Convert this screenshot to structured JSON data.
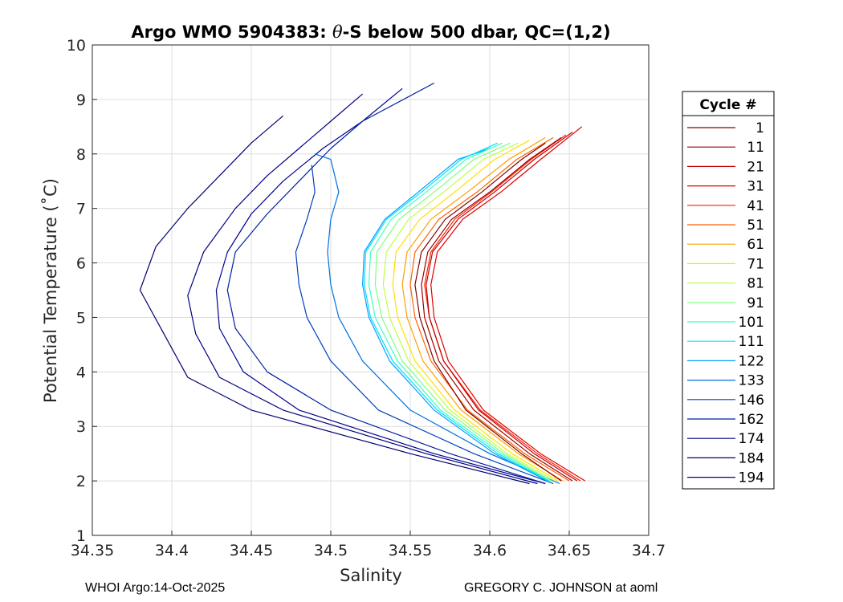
{
  "chart_data": {
    "type": "line",
    "title_prefix": "Argo WMO 5904383: ",
    "title_theta": "θ",
    "title_suffix": "-S below 500 dbar,  QC=(1,2)",
    "xlabel": "Salinity",
    "ylabel": "Potential Temperature (˚C)",
    "xlim": [
      34.35,
      34.7
    ],
    "ylim": [
      1,
      10
    ],
    "x_ticks": [
      "34.35",
      "34.4",
      "34.45",
      "34.5",
      "34.55",
      "34.6",
      "34.65",
      "34.7"
    ],
    "y_ticks": [
      "1",
      "2",
      "3",
      "4",
      "5",
      "6",
      "7",
      "8",
      "9",
      "10"
    ],
    "grid": true,
    "legend_position": "outside-right",
    "legend": {
      "title": "Cycle #",
      "entries": [
        {
          "label": "1",
          "color": "#800000"
        },
        {
          "label": "11",
          "color": "#9e0000"
        },
        {
          "label": "21",
          "color": "#c00000"
        },
        {
          "label": "31",
          "color": "#e00000"
        },
        {
          "label": "41",
          "color": "#ff2000"
        },
        {
          "label": "51",
          "color": "#ff6000"
        },
        {
          "label": "61",
          "color": "#ffa000"
        },
        {
          "label": "71",
          "color": "#ffe000"
        },
        {
          "label": "81",
          "color": "#c0ff40"
        },
        {
          "label": "91",
          "color": "#80ff80"
        },
        {
          "label": "101",
          "color": "#40ffc0"
        },
        {
          "label": "111",
          "color": "#00e0ff"
        },
        {
          "label": "122",
          "color": "#00a0ff"
        },
        {
          "label": "133",
          "color": "#0070e0"
        },
        {
          "label": "146",
          "color": "#0040c0"
        },
        {
          "label": "162",
          "color": "#0020a0"
        },
        {
          "label": "174",
          "color": "#000080"
        },
        {
          "label": "184",
          "color": "#000070"
        },
        {
          "label": "194",
          "color": "#000090"
        }
      ]
    },
    "series": [
      {
        "name": "cycle 1",
        "color": "#800000",
        "s": [
          34.645,
          34.62,
          34.585,
          34.565,
          34.556,
          34.553,
          34.557,
          34.572,
          34.595,
          34.62,
          34.635
        ],
        "t": [
          2.0,
          2.5,
          3.3,
          4.2,
          5.0,
          5.6,
          6.2,
          6.8,
          7.3,
          7.9,
          8.2
        ]
      },
      {
        "name": "cycle 11",
        "color": "#9e0000",
        "s": [
          34.652,
          34.625,
          34.59,
          34.568,
          34.559,
          34.557,
          34.561,
          34.576,
          34.6,
          34.625,
          34.645
        ],
        "t": [
          2.0,
          2.5,
          3.3,
          4.2,
          5.0,
          5.6,
          6.2,
          6.8,
          7.3,
          7.9,
          8.3
        ]
      },
      {
        "name": "cycle 21",
        "color": "#c00000",
        "s": [
          34.655,
          34.628,
          34.593,
          34.571,
          34.562,
          34.56,
          34.564,
          34.58,
          34.603,
          34.628,
          34.652
        ],
        "t": [
          2.0,
          2.5,
          3.3,
          4.2,
          5.0,
          5.6,
          6.2,
          6.8,
          7.3,
          7.9,
          8.4
        ]
      },
      {
        "name": "cycle 31",
        "color": "#e00000",
        "s": [
          34.66,
          34.632,
          34.596,
          34.574,
          34.565,
          34.563,
          34.567,
          34.583,
          34.607,
          34.632,
          34.658
        ],
        "t": [
          2.0,
          2.5,
          3.3,
          4.2,
          5.0,
          5.6,
          6.2,
          6.8,
          7.3,
          7.9,
          8.5
        ]
      },
      {
        "name": "cycle 41",
        "color": "#ff2000",
        "s": [
          34.657,
          34.63,
          34.594,
          34.571,
          34.562,
          34.559,
          34.563,
          34.578,
          34.601,
          34.626,
          34.648
        ],
        "t": [
          2.0,
          2.5,
          3.3,
          4.2,
          5.0,
          5.6,
          6.2,
          6.8,
          7.3,
          7.9,
          8.35
        ]
      },
      {
        "name": "cycle 51",
        "color": "#ff6000",
        "s": [
          34.65,
          34.622,
          34.586,
          34.563,
          34.553,
          34.55,
          34.553,
          34.568,
          34.592,
          34.617,
          34.64
        ],
        "t": [
          2.0,
          2.5,
          3.3,
          4.2,
          5.0,
          5.6,
          6.2,
          6.8,
          7.3,
          7.9,
          8.3
        ]
      },
      {
        "name": "cycle 61",
        "color": "#ffa000",
        "s": [
          34.646,
          34.618,
          34.582,
          34.558,
          34.548,
          34.545,
          34.548,
          34.563,
          34.586,
          34.612,
          34.635
        ],
        "t": [
          2.0,
          2.5,
          3.3,
          4.2,
          5.0,
          5.6,
          6.2,
          6.8,
          7.3,
          7.9,
          8.3
        ]
      },
      {
        "name": "cycle 71",
        "color": "#ffe000",
        "s": [
          34.643,
          34.614,
          34.578,
          34.553,
          34.542,
          34.539,
          34.541,
          34.556,
          34.578,
          34.603,
          34.625
        ],
        "t": [
          2.0,
          2.5,
          3.3,
          4.2,
          5.0,
          5.6,
          6.2,
          6.8,
          7.3,
          7.9,
          8.25
        ]
      },
      {
        "name": "cycle 81",
        "color": "#c0ff40",
        "s": [
          34.641,
          34.611,
          34.575,
          34.549,
          34.537,
          34.533,
          34.535,
          34.549,
          34.571,
          34.596,
          34.618
        ],
        "t": [
          2.0,
          2.5,
          3.3,
          4.2,
          5.0,
          5.6,
          6.2,
          6.8,
          7.3,
          7.9,
          8.2
        ]
      },
      {
        "name": "cycle 91",
        "color": "#80ff80",
        "s": [
          34.639,
          34.609,
          34.572,
          34.545,
          34.532,
          34.528,
          34.529,
          34.543,
          34.565,
          34.59,
          34.613
        ],
        "t": [
          2.0,
          2.5,
          3.3,
          4.2,
          5.0,
          5.6,
          6.2,
          6.8,
          7.3,
          7.9,
          8.2
        ]
      },
      {
        "name": "cycle 101",
        "color": "#40ffc0",
        "s": [
          34.638,
          34.607,
          34.569,
          34.542,
          34.528,
          34.524,
          34.525,
          34.538,
          34.56,
          34.585,
          34.608
        ],
        "t": [
          2.0,
          2.5,
          3.3,
          4.2,
          5.0,
          5.6,
          6.2,
          6.8,
          7.3,
          7.9,
          8.2
        ]
      },
      {
        "name": "cycle 111",
        "color": "#00e0ff",
        "s": [
          34.637,
          34.605,
          34.567,
          34.539,
          34.525,
          34.521,
          34.522,
          34.535,
          34.557,
          34.582,
          34.605
        ],
        "t": [
          2.0,
          2.5,
          3.3,
          4.2,
          5.0,
          5.6,
          6.2,
          6.8,
          7.3,
          7.9,
          8.2
        ]
      },
      {
        "name": "cycle 122",
        "color": "#00a0ff",
        "s": [
          34.636,
          34.603,
          34.565,
          34.537,
          34.524,
          34.52,
          34.521,
          34.534,
          34.555,
          34.58,
          34.6
        ],
        "t": [
          2.0,
          2.5,
          3.3,
          4.2,
          5.0,
          5.6,
          6.2,
          6.8,
          7.3,
          7.9,
          8.1
        ]
      },
      {
        "name": "cycle 133",
        "color": "#0070e0",
        "s": [
          34.644,
          34.6,
          34.55,
          34.52,
          34.505,
          34.5,
          34.498,
          34.5,
          34.505,
          34.5,
          34.49
        ],
        "t": [
          1.95,
          2.5,
          3.3,
          4.2,
          5.0,
          5.6,
          6.2,
          6.8,
          7.3,
          7.9,
          8.0
        ]
      },
      {
        "name": "cycle 146",
        "color": "#0040c0",
        "s": [
          34.64,
          34.59,
          34.53,
          34.5,
          34.485,
          34.48,
          34.478,
          34.485,
          34.49,
          34.488
        ],
        "t": [
          1.95,
          2.5,
          3.3,
          4.2,
          5.0,
          5.6,
          6.2,
          6.8,
          7.3,
          7.8
        ]
      },
      {
        "name": "cycle 162",
        "color": "#0020a0",
        "s": [
          34.635,
          34.575,
          34.5,
          34.46,
          34.44,
          34.435,
          34.44,
          34.46,
          34.48,
          34.5,
          34.52,
          34.565
        ],
        "t": [
          1.95,
          2.5,
          3.3,
          4.0,
          4.8,
          5.5,
          6.2,
          6.9,
          7.5,
          8.1,
          8.6,
          9.3
        ]
      },
      {
        "name": "cycle 174",
        "color": "#000080",
        "s": [
          34.63,
          34.56,
          34.47,
          34.43,
          34.415,
          34.41,
          34.42,
          34.44,
          34.46,
          34.48,
          34.5,
          34.52
        ],
        "t": [
          1.95,
          2.5,
          3.3,
          3.9,
          4.7,
          5.4,
          6.2,
          7.0,
          7.6,
          8.1,
          8.6,
          9.1
        ]
      },
      {
        "name": "cycle 184",
        "color": "#000070",
        "s": [
          34.625,
          34.55,
          34.45,
          34.41,
          34.395,
          34.38,
          34.39,
          34.41,
          34.43,
          34.45,
          34.47
        ],
        "t": [
          1.95,
          2.5,
          3.3,
          3.9,
          4.7,
          5.5,
          6.3,
          7.0,
          7.6,
          8.2,
          8.7
        ]
      },
      {
        "name": "cycle 194",
        "color": "#000090",
        "s": [
          34.635,
          34.565,
          34.48,
          34.445,
          34.43,
          34.428,
          34.435,
          34.45,
          34.47,
          34.495,
          34.52,
          34.545
        ],
        "t": [
          1.95,
          2.5,
          3.3,
          4.0,
          4.8,
          5.5,
          6.2,
          6.9,
          7.5,
          8.1,
          8.6,
          9.2
        ]
      }
    ]
  },
  "footer": {
    "left": "WHOI Argo:14-Oct-2025",
    "right": "GREGORY C. JOHNSON at aoml"
  }
}
